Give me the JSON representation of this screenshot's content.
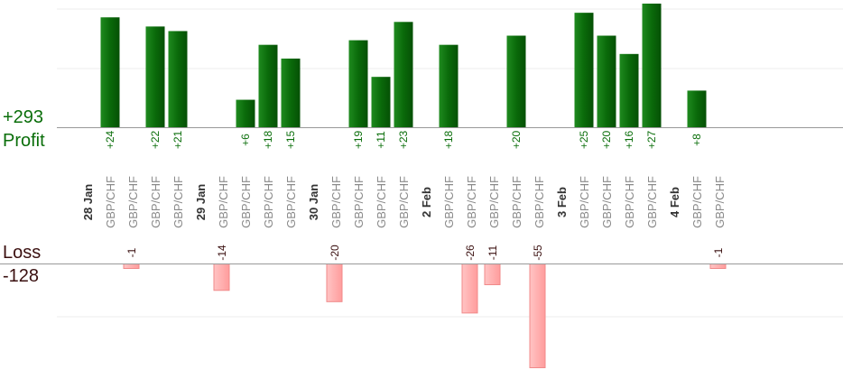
{
  "labels": {
    "profit_total": "+293",
    "profit": "Profit",
    "loss": "Loss",
    "loss_total": "-128"
  },
  "colors": {
    "profit_bar": "#0a6a0a",
    "profit_text": "#0a6e0a",
    "loss_bar": "#ffb3b3",
    "loss_bar_edge": "#f08a8a",
    "loss_text": "#3a0f0f",
    "grid": "#ececec",
    "axis": "#999999",
    "slot_label": "#8a8a8a",
    "date_label": "#333333"
  },
  "chart_data": {
    "type": "bar",
    "description_of_axes": "profit bars above upper baseline, loss bars below lower baseline",
    "ylim_profit": [
      0,
      27
    ],
    "ylim_loss": [
      0,
      55
    ],
    "slots": [
      {
        "kind": "date",
        "label": "28 Jan"
      },
      {
        "kind": "trade",
        "label": "GBP/CHF",
        "value": 24
      },
      {
        "kind": "trade",
        "label": "GBP/CHF",
        "value": -1
      },
      {
        "kind": "trade",
        "label": "GBP/CHF",
        "value": 22
      },
      {
        "kind": "trade",
        "label": "GBP/CHF",
        "value": 21
      },
      {
        "kind": "date",
        "label": "29 Jan"
      },
      {
        "kind": "trade",
        "label": "GBP/CHF",
        "value": -14
      },
      {
        "kind": "trade",
        "label": "GBP/CHF",
        "value": 6
      },
      {
        "kind": "trade",
        "label": "GBP/CHF",
        "value": 18
      },
      {
        "kind": "trade",
        "label": "GBP/CHF",
        "value": 15
      },
      {
        "kind": "date",
        "label": "30 Jan"
      },
      {
        "kind": "trade",
        "label": "GBP/CHF",
        "value": -20
      },
      {
        "kind": "trade",
        "label": "GBP/CHF",
        "value": 19
      },
      {
        "kind": "trade",
        "label": "GBP/CHF",
        "value": 11
      },
      {
        "kind": "trade",
        "label": "GBP/CHF",
        "value": 23
      },
      {
        "kind": "date",
        "label": "2 Feb"
      },
      {
        "kind": "trade",
        "label": "GBP/CHF",
        "value": 18
      },
      {
        "kind": "trade",
        "label": "GBP/CHF",
        "value": -26
      },
      {
        "kind": "trade",
        "label": "GBP/CHF",
        "value": -11
      },
      {
        "kind": "trade",
        "label": "GBP/CHF",
        "value": 20
      },
      {
        "kind": "trade",
        "label": "GBP/CHF",
        "value": -55
      },
      {
        "kind": "date",
        "label": "3 Feb"
      },
      {
        "kind": "trade",
        "label": "GBP/CHF",
        "value": 25
      },
      {
        "kind": "trade",
        "label": "GBP/CHF",
        "value": 20
      },
      {
        "kind": "trade",
        "label": "GBP/CHF",
        "value": 16
      },
      {
        "kind": "trade",
        "label": "GBP/CHF",
        "value": 27
      },
      {
        "kind": "date",
        "label": "4 Feb"
      },
      {
        "kind": "trade",
        "label": "GBP/CHF",
        "value": 8
      },
      {
        "kind": "trade",
        "label": "GBP/CHF",
        "value": -1
      }
    ]
  }
}
